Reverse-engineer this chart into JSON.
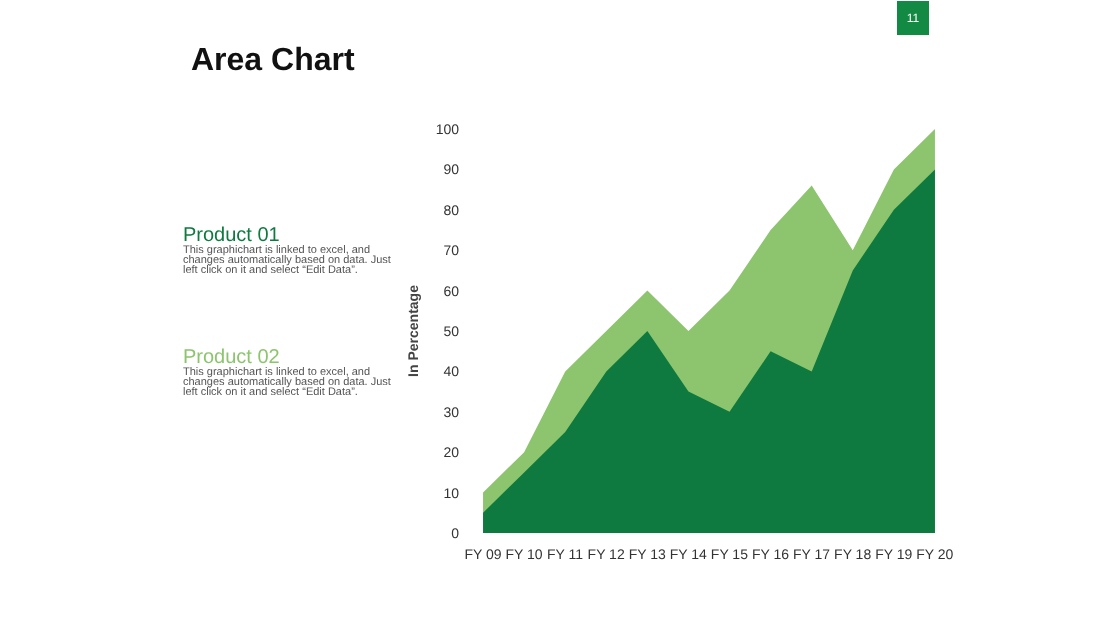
{
  "chart_data": {
    "type": "area",
    "title": "Area Chart",
    "ylabel": "In Percentage",
    "categories": [
      "FY 09",
      "FY 10",
      "FY 11",
      "FY 12",
      "FY 13",
      "FY 14",
      "FY 15",
      "FY 16",
      "FY 17",
      "FY 18",
      "FY 19",
      "FY 20"
    ],
    "series": [
      {
        "name": "Product 02",
        "color": "#8cc56e",
        "values": [
          10,
          20,
          40,
          50,
          60,
          50,
          60,
          75,
          86,
          70,
          90,
          100
        ]
      },
      {
        "name": "Product 01",
        "color": "#0e7a3f",
        "values": [
          5,
          15,
          25,
          40,
          50,
          35,
          30,
          45,
          40,
          65,
          80,
          90
        ]
      }
    ],
    "ylim": [
      0,
      100
    ],
    "yticks": [
      0,
      10,
      20,
      30,
      40,
      50,
      60,
      70,
      80,
      90,
      100
    ],
    "grid": false,
    "annotations": [
      "This graphichart is linked to excel, and changes automatically based on data. Just left click on it and select “Edit Data”.",
      "This graphichart is linked to excel, and changes automatically based on data. Just left click on it and select “Edit Data”.",
      "11"
    ]
  }
}
